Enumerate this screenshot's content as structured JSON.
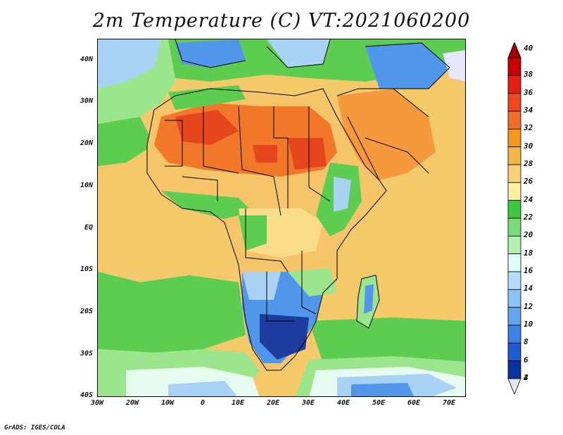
{
  "title": "2m Temperature (C) VT:2021060200",
  "credit": "GrADS: IGES/COLA",
  "y_axis_labels": [
    "40N",
    "30N",
    "20N",
    "10N",
    "EQ",
    "10S",
    "20S",
    "30S",
    "40S"
  ],
  "x_axis_labels": [
    "30W",
    "20W",
    "10W",
    "0",
    "10E",
    "20E",
    "30E",
    "40E",
    "50E",
    "60E",
    "70E"
  ],
  "colorbar": {
    "labels": [
      "40",
      "38",
      "36",
      "34",
      "32",
      "30",
      "28",
      "26",
      "24",
      "22",
      "20",
      "18",
      "16",
      "14",
      "12",
      "10",
      "8",
      "6",
      "4",
      "2"
    ],
    "colors": [
      "#a00000",
      "#c80000",
      "#e61e14",
      "#f0461e",
      "#f06e28",
      "#f5961e",
      "#f5b446",
      "#f8d278",
      "#fff0a0",
      "#3cc83c",
      "#78dc78",
      "#b4f0b4",
      "#e0fff8",
      "#b4dcfa",
      "#8cc3f5",
      "#64a5f0",
      "#3c82e6",
      "#1e5ad2",
      "#0a32a0",
      "#e6e6ff"
    ]
  },
  "palette": {
    "ocean_warm": "#f4c96a",
    "ocean_mid": "#f8dc8a",
    "cool_green": "#5ccd50",
    "light_green": "#9be68c",
    "pale": "#e6fcf0",
    "light_blue": "#aad2f5",
    "blue": "#5096eb",
    "deep_blue": "#1e3ca0",
    "hot": "#f07828",
    "hotter": "#e6461e",
    "border_line": "#000000"
  }
}
